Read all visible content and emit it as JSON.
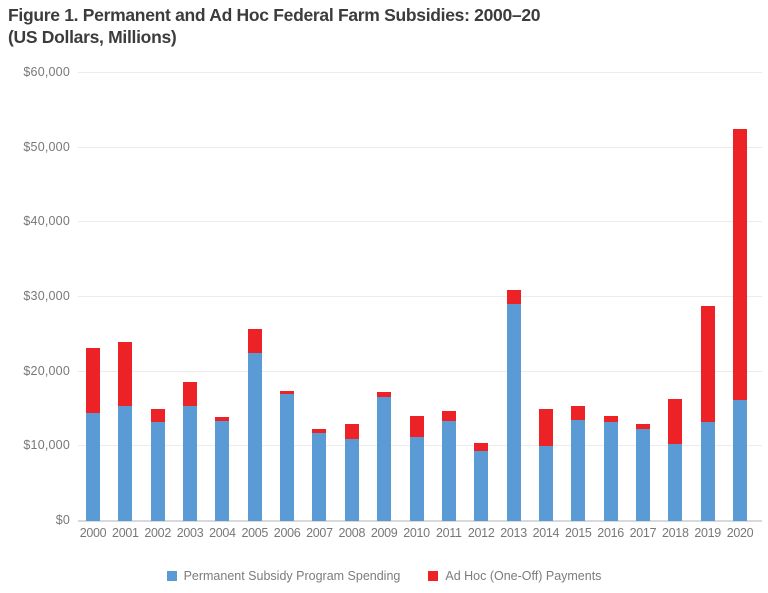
{
  "figure": {
    "title_line1": "Figure 1. Permanent and Ad Hoc Federal Farm Subsidies: 2000–20",
    "title_line2": "(US Dollars, Millions)"
  },
  "colors": {
    "permanent": "#5B9BD5",
    "ad_hoc": "#EC2227",
    "gridline": "#ECECEC",
    "axis_line": "#D8D9DB",
    "tick_text": "#77787B",
    "title_text": "#3C3C3E",
    "legend_text": "#7B7C7E"
  },
  "chart_data": {
    "type": "bar",
    "stacked": true,
    "title": "Figure 1. Permanent and Ad Hoc Federal Farm Subsidies: 2000–20 (US Dollars, Millions)",
    "categories": [
      "2000",
      "2001",
      "2002",
      "2003",
      "2004",
      "2005",
      "2006",
      "2007",
      "2008",
      "2009",
      "2010",
      "2011",
      "2012",
      "2013",
      "2014",
      "2015",
      "2016",
      "2017",
      "2018",
      "2019",
      "2020"
    ],
    "series": [
      {
        "name": "Permanent Subsidy Program Spending",
        "color": "#5B9BD5",
        "values": [
          14500,
          15400,
          13300,
          15400,
          13400,
          22500,
          17000,
          11800,
          11000,
          16600,
          11200,
          13400,
          9400,
          29000,
          10100,
          13500,
          13200,
          12300,
          10300,
          13200,
          16200
        ]
      },
      {
        "name": "Ad Hoc (One-Off) Payments",
        "color": "#EC2227",
        "values": [
          8700,
          8600,
          1700,
          3200,
          500,
          3200,
          400,
          500,
          2000,
          700,
          2800,
          1400,
          1000,
          2000,
          4900,
          1900,
          900,
          700,
          6100,
          15600,
          36300
        ]
      }
    ],
    "xlabel": "",
    "ylabel": "",
    "ylim": [
      0,
      60000
    ],
    "ytick_interval": 10000,
    "ytick_labels": [
      "$0",
      "$10,000",
      "$20,000",
      "$30,000",
      "$40,000",
      "$50,000",
      "$60,000"
    ],
    "grid": true,
    "legend_position": "bottom"
  }
}
